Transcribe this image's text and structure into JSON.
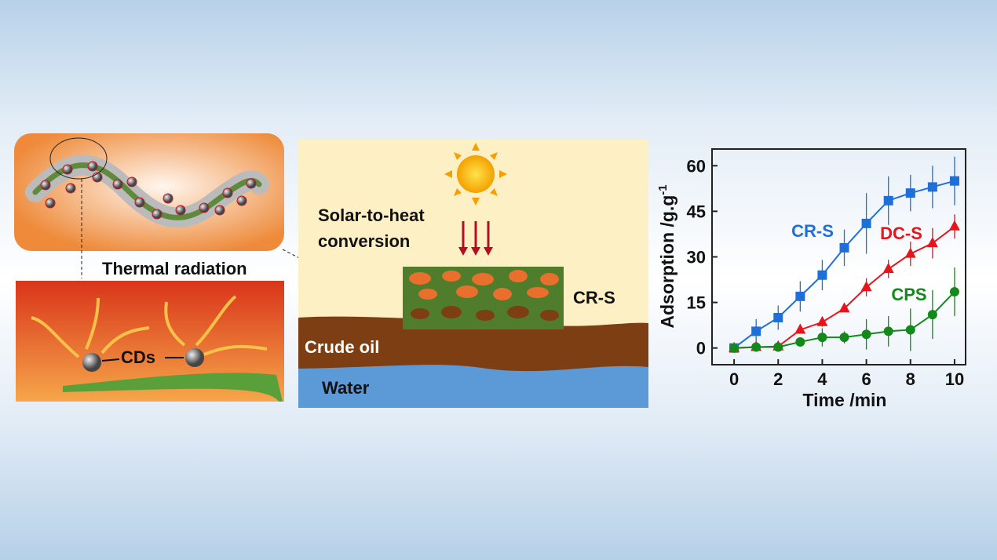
{
  "diagram": {
    "thermal_label": "Thermal radiation",
    "cds_label": "CDs",
    "solar_label_1": "Solar-to-heat",
    "solar_label_2": "conversion",
    "sponge_label": "CR-S",
    "oil_label": "Crude oil",
    "water_label": "Water"
  },
  "chart_data": {
    "type": "line",
    "xlabel": "Time /min",
    "ylabel": "Adsorption /g.g",
    "ylabel_sup": "-1",
    "x": [
      0,
      1,
      2,
      3,
      4,
      5,
      6,
      7,
      8,
      9,
      10
    ],
    "xlim": [
      -1,
      10.5
    ],
    "xticks": [
      0,
      2,
      4,
      6,
      8,
      10
    ],
    "ylim": [
      -5.5,
      65.5
    ],
    "yticks": [
      0,
      15,
      30,
      45,
      60
    ],
    "grid": false,
    "series": [
      {
        "name": "CR-S",
        "color": "#1f6fd8",
        "marker": "square",
        "values": [
          0,
          5.5,
          10,
          17,
          24,
          33,
          41,
          48.5,
          51,
          53,
          55
        ],
        "errors": [
          0,
          4,
          4,
          5,
          5,
          6,
          10,
          8,
          6,
          7,
          8
        ]
      },
      {
        "name": "DC-S",
        "color": "#e8141c",
        "marker": "triangle",
        "values": [
          0,
          0.3,
          0.5,
          6,
          8.5,
          13,
          20,
          26,
          31,
          34.5,
          40
        ],
        "errors": [
          0,
          0,
          0,
          1,
          1.5,
          1,
          3,
          3,
          4,
          5,
          4
        ]
      },
      {
        "name": "CPS",
        "color": "#13891b",
        "marker": "circle",
        "values": [
          0,
          0.3,
          0.3,
          2,
          3.5,
          3.5,
          4.5,
          5.5,
          6,
          11,
          18.5
        ],
        "errors": [
          0,
          0,
          0,
          1.5,
          3,
          2,
          5,
          5,
          7,
          8,
          8
        ]
      }
    ]
  }
}
